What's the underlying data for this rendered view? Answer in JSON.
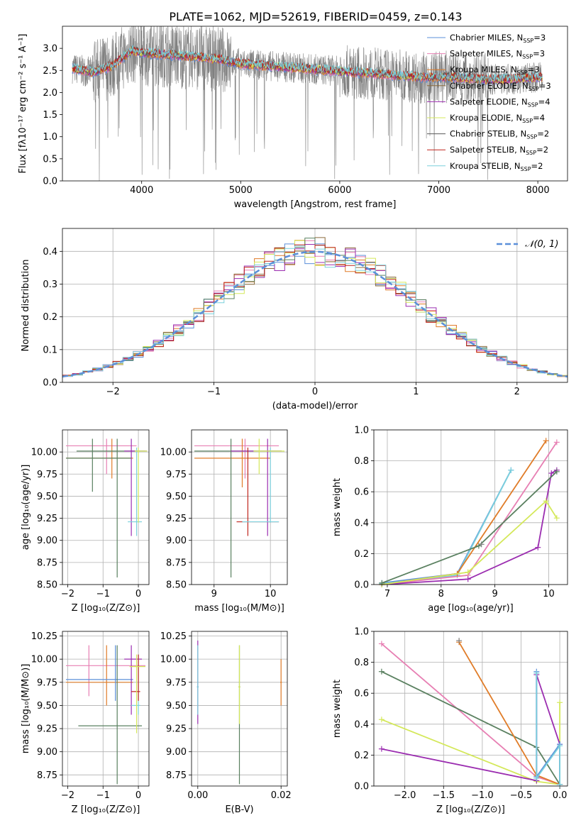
{
  "figure": {
    "title": "PLATE=1062, MJD=52619, FIBERID=0459, z=0.143",
    "colors": {
      "chabrier_miles": "#5b8fd9",
      "salpeter_miles": "#e77fb3",
      "kroupa_miles": "#e07c28",
      "chabrier_elodie": "#8b6b3d",
      "salpeter_elodie": "#9b2db0",
      "kroupa_elodie": "#d4e85a",
      "chabrier_stelib": "#5a5a5a",
      "salpeter_stelib": "#c0241c",
      "kroupa_stelib": "#7ad0dc",
      "data_spectrum": "#808080",
      "normal_curve": "#5b8fd9",
      "dark_green": "#5a8060"
    }
  },
  "chart_data": [
    {
      "id": "spectrum",
      "type": "line",
      "title": "PLATE=1062, MJD=52619, FIBERID=0459, z=0.143",
      "xlabel": "wavelength [Angstrom, rest frame]",
      "ylabel": "Flux [fλ10⁻¹⁷ erg cm⁻² s⁻¹ A⁻¹]",
      "xlim": [
        3200,
        8300
      ],
      "ylim": [
        0,
        3.5
      ],
      "xticks": [
        "4000",
        "5000",
        "6000",
        "7000",
        "8000"
      ],
      "yticks": [
        "0.0",
        "0.5",
        "1.0",
        "1.5",
        "2.0",
        "2.5",
        "3.0"
      ],
      "grid": false,
      "legend_position": "right",
      "legend": [
        {
          "label": "Chabrier MILES, N",
          "sub": "SSP",
          "suffix": "=3",
          "color": "#5b8fd9"
        },
        {
          "label": "Salpeter MILES, N",
          "sub": "SSP",
          "suffix": "=3",
          "color": "#e77fb3"
        },
        {
          "label": "Kroupa MILES, N",
          "sub": "SSP",
          "suffix": "=3",
          "color": "#e07c28"
        },
        {
          "label": "Chabrier ELODIE, N",
          "sub": "SSP",
          "suffix": "=3",
          "color": "#8b6b3d"
        },
        {
          "label": "Salpeter ELODIE, N",
          "sub": "SSP",
          "suffix": "=4",
          "color": "#9b2db0"
        },
        {
          "label": "Kroupa ELODIE, N",
          "sub": "SSP",
          "suffix": "=4",
          "color": "#d4e85a"
        },
        {
          "label": "Chabrier STELIB, N",
          "sub": "SSP",
          "suffix": "=2",
          "color": "#5a5a5a"
        },
        {
          "label": "Salpeter STELIB, N",
          "sub": "SSP",
          "suffix": "=2",
          "color": "#c0241c"
        },
        {
          "label": "Kroupa STELIB, N",
          "sub": "SSP",
          "suffix": "=2",
          "color": "#7ad0dc"
        }
      ],
      "continuum_x": [
        3300,
        3400,
        3500,
        3700,
        3900,
        4000,
        4300,
        4600,
        4800,
        5000,
        5300,
        5600,
        5900,
        6200,
        6500,
        6800,
        7100,
        7400,
        7700,
        8050
      ],
      "continuum_y": [
        2.55,
        2.5,
        2.45,
        2.6,
        2.95,
        2.9,
        2.85,
        2.8,
        2.75,
        2.65,
        2.6,
        2.55,
        2.5,
        2.45,
        2.4,
        2.35,
        2.35,
        2.3,
        2.3,
        2.35
      ]
    },
    {
      "id": "residuals",
      "type": "line",
      "xlabel": "(data-model)/error",
      "ylabel": "Normed distribution",
      "xlim": [
        -2.5,
        2.5
      ],
      "ylim": [
        0,
        0.47
      ],
      "xticks": [
        "−2",
        "−1",
        "0",
        "1",
        "2"
      ],
      "yticks": [
        "0.0",
        "0.1",
        "0.2",
        "0.3",
        "0.4"
      ],
      "grid": true,
      "legend_position": "top-right",
      "legend_label": "𝒩(0, 1)",
      "series_note": "step histograms, one per model plus N(0,1) curve"
    },
    {
      "id": "age_vs_Z",
      "type": "scatter",
      "xlabel": "Z [log₁₀(Z/Z⊙)]",
      "ylabel": "age  [log₁₀(age/yr)]",
      "xlim": [
        -2.15,
        0.3
      ],
      "ylim": [
        8.5,
        10.25
      ],
      "xticks": [
        "−2",
        "−1",
        "0"
      ],
      "yticks": [
        "8.50",
        "8.75",
        "9.00",
        "9.25",
        "9.50",
        "9.75",
        "10.00"
      ],
      "grid": true
    },
    {
      "id": "age_vs_mass",
      "type": "scatter",
      "xlabel": "mass [log₁₀(M/M⊙)]",
      "ylabel": "",
      "xlim": [
        8.6,
        10.3
      ],
      "ylim": [
        8.5,
        10.25
      ],
      "xticks": [
        "9",
        "10"
      ],
      "yticks": [
        "8.50",
        "8.75",
        "9.00",
        "9.25",
        "9.50",
        "9.75",
        "10.00"
      ],
      "grid": true
    },
    {
      "id": "massweight_vs_age",
      "type": "line",
      "xlabel": "age  [log₁₀(age/yr)]",
      "ylabel": "mass weight",
      "xlim": [
        6.75,
        10.35
      ],
      "ylim": [
        0,
        1.0
      ],
      "xticks": [
        "7",
        "8",
        "9",
        "10"
      ],
      "yticks": [
        "0.0",
        "0.2",
        "0.4",
        "0.6",
        "0.8",
        "1.0"
      ],
      "grid": true,
      "series": [
        {
          "color": "#5b8fd9",
          "x": [
            6.9,
            8.3,
            9.3
          ],
          "y": [
            0.01,
            0.07,
            0.74
          ]
        },
        {
          "color": "#7ad0dc",
          "x": [
            6.9,
            8.3,
            9.3
          ],
          "y": [
            0.005,
            0.06,
            0.74
          ]
        },
        {
          "color": "#e77fb3",
          "x": [
            6.9,
            8.5,
            10.15
          ],
          "y": [
            0.0,
            0.06,
            0.92
          ]
        },
        {
          "color": "#e07c28",
          "x": [
            6.9,
            8.3,
            9.95
          ],
          "y": [
            0.0,
            0.07,
            0.93
          ]
        },
        {
          "color": "#9b2db0",
          "x": [
            6.9,
            8.5,
            9.8,
            10.05,
            10.15
          ],
          "y": [
            0.0,
            0.035,
            0.24,
            0.72,
            0.74
          ]
        },
        {
          "color": "#d4e85a",
          "x": [
            6.9,
            8.5,
            9.95,
            10.15
          ],
          "y": [
            0.0,
            0.08,
            0.54,
            0.43
          ]
        },
        {
          "color": "#5a8060",
          "x": [
            6.9,
            8.7,
            10.15
          ],
          "y": [
            0.01,
            0.25,
            0.73
          ]
        },
        {
          "color": "#808080",
          "x": [
            8.75
          ],
          "y": [
            0.26
          ]
        }
      ]
    },
    {
      "id": "mass_vs_Z",
      "type": "scatter",
      "xlabel": "Z [log₁₀(Z/Z⊙)]",
      "ylabel": "mass [log₁₀(M/M⊙)]",
      "xlim": [
        -2.15,
        0.3
      ],
      "ylim": [
        8.63,
        10.3
      ],
      "xticks": [
        "−2",
        "−1",
        "0"
      ],
      "yticks": [
        "8.75",
        "9.00",
        "9.25",
        "9.50",
        "9.75",
        "10.00",
        "10.25"
      ],
      "grid": true
    },
    {
      "id": "mass_vs_ebv",
      "type": "scatter",
      "xlabel": "E(B-V)",
      "ylabel": "",
      "xlim": [
        -0.0015,
        0.0215
      ],
      "ylim": [
        8.63,
        10.3
      ],
      "xticks": [
        "0.00",
        "0.02"
      ],
      "yticks": [
        "8.75",
        "9.00",
        "9.25",
        "9.50",
        "9.75",
        "10.00",
        "10.25"
      ],
      "grid": true
    },
    {
      "id": "massweight_vs_Z",
      "type": "line",
      "xlabel": "Z [log₁₀(Z/Z⊙)]",
      "ylabel": "mass weight",
      "xlim": [
        -2.4,
        0.1
      ],
      "ylim": [
        0,
        1.0
      ],
      "xticks": [
        "−2.0",
        "−1.5",
        "−1.0",
        "−0.5",
        "0.0"
      ],
      "yticks": [
        "0.0",
        "0.2",
        "0.4",
        "0.6",
        "0.8",
        "1.0"
      ],
      "grid": true,
      "series": [
        {
          "color": "#e77fb3",
          "x": [
            -2.3,
            -0.3,
            0.0
          ],
          "y": [
            0.92,
            0.06,
            0.01
          ]
        },
        {
          "color": "#5a8060",
          "x": [
            -2.3,
            -0.3,
            0.0
          ],
          "y": [
            0.74,
            0.25,
            0.01
          ]
        },
        {
          "color": "#d4e85a",
          "x": [
            -2.3,
            -0.3,
            0.0,
            0.0
          ],
          "y": [
            0.43,
            0.03,
            0.01,
            0.54
          ]
        },
        {
          "color": "#9b2db0",
          "x": [
            -2.3,
            -0.3,
            -0.3,
            0.0,
            0.0
          ],
          "y": [
            0.24,
            0.035,
            0.72,
            0.27,
            0.01
          ]
        },
        {
          "color": "#e07c28",
          "x": [
            -1.3,
            -0.3,
            0.0
          ],
          "y": [
            0.93,
            0.07,
            0.01
          ]
        },
        {
          "color": "#5b8fd9",
          "x": [
            -0.3,
            -0.3,
            0.0,
            0.0
          ],
          "y": [
            0.74,
            0.06,
            0.27,
            0.01
          ]
        },
        {
          "color": "#7ad0dc",
          "x": [
            -0.3,
            -0.3,
            0.0,
            0.0
          ],
          "y": [
            0.73,
            0.05,
            0.26,
            0.01
          ]
        },
        {
          "color": "#808080",
          "x": [
            -1.3
          ],
          "y": [
            0.94
          ]
        }
      ]
    }
  ]
}
